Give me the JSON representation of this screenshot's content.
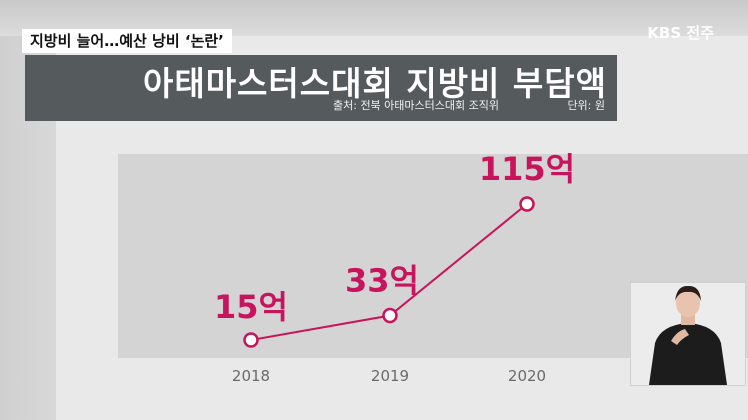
{
  "news_caption": "지방비 늘어…예산 낭비 ‘논란’",
  "broadcaster": "KBS 전주",
  "title_panel": {
    "title": "아태마스터스대회 지방비 부담액",
    "source": "출처: 전북 아태마스터스대회 조직위",
    "unit": "단위: 원"
  },
  "colors": {
    "series": "#c8145c",
    "point_fill": "#ffffff",
    "panel": "#555a5c",
    "plot_bg": "#d4d4d4",
    "tick_text": "#6a6a6a"
  },
  "chart_data": {
    "type": "line",
    "title": "아태마스터스대회 지방비 부담액",
    "categories": [
      "2018",
      "2019",
      "2020"
    ],
    "series": [
      {
        "values": [
          15,
          33,
          115
        ],
        "labels": [
          "15억",
          "33억",
          "115억"
        ]
      }
    ],
    "ylim": [
      0,
      130
    ],
    "grid": false,
    "legend": "none"
  }
}
